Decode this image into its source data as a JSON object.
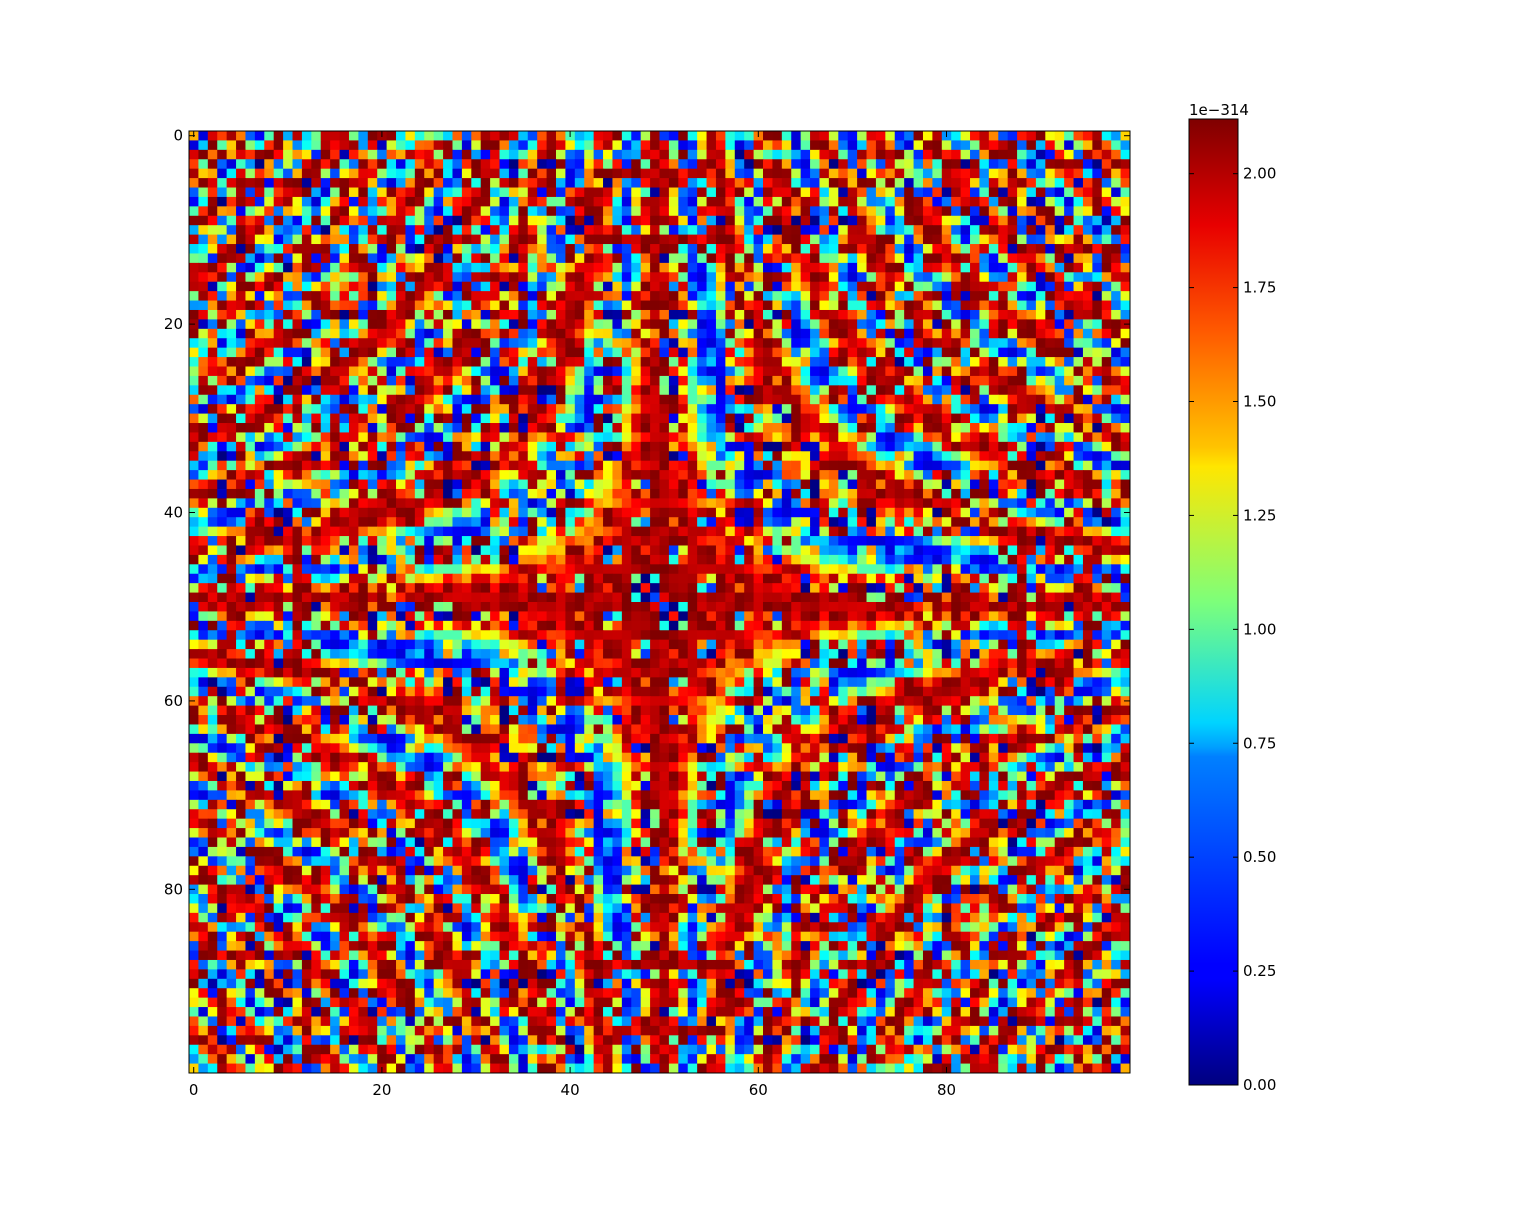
{
  "chart_data": {
    "type": "heatmap",
    "title": "",
    "xlabel": "",
    "ylabel": "",
    "grid": false,
    "image_shape": [
      100,
      100
    ],
    "xlim": [
      -0.5,
      99.5
    ],
    "ylim": [
      99.5,
      -0.5
    ],
    "x_ticks": [
      0,
      20,
      40,
      60,
      80
    ],
    "x_tick_labels": [
      "0",
      "20",
      "40",
      "60",
      "80"
    ],
    "y_ticks": [
      0,
      20,
      40,
      60,
      80
    ],
    "y_tick_labels": [
      "0",
      "20",
      "40",
      "60",
      "80"
    ],
    "colormap": "jet",
    "colorbar": {
      "offset_label": "1e−314",
      "range": [
        0.0,
        2.12
      ],
      "ticks": [
        0.0,
        0.25,
        0.5,
        0.75,
        1.0,
        1.25,
        1.5,
        1.75,
        2.0
      ],
      "tick_labels": [
        "0.00",
        "0.25",
        "0.50",
        "0.75",
        "1.00",
        "1.25",
        "1.50",
        "1.75",
        "2.00"
      ]
    },
    "pattern_note_colors": {
      "low": "#00007f",
      "mid": "#7fff7f",
      "high": "#7f0000"
    }
  }
}
